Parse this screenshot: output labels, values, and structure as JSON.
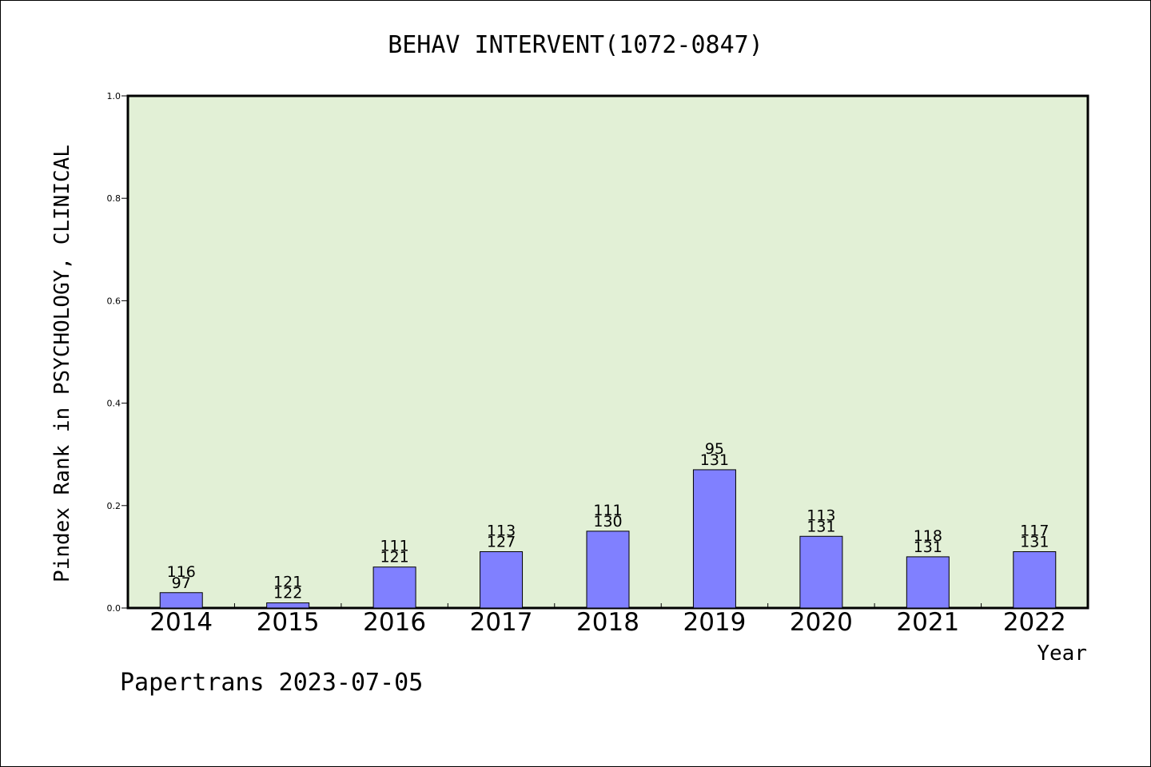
{
  "chart_data": {
    "type": "bar",
    "title": "BEHAV INTERVENT(1072-0847)",
    "xlabel": "Year",
    "ylabel": "Pindex Rank in PSYCHOLOGY, CLINICAL",
    "categories": [
      "2014",
      "2015",
      "2016",
      "2017",
      "2018",
      "2019",
      "2020",
      "2021",
      "2022"
    ],
    "values": [
      0.03,
      0.01,
      0.08,
      0.11,
      0.15,
      0.27,
      0.14,
      0.1,
      0.11
    ],
    "label_top": [
      "116",
      "121",
      "111",
      "113",
      "111",
      "95",
      "113",
      "118",
      "117"
    ],
    "label_bottom": [
      "97",
      "122",
      "121",
      "127",
      "130",
      "131",
      "131",
      "131",
      "131"
    ],
    "ylim": [
      0,
      1.0
    ],
    "yticks": [
      "0.0",
      "0.2",
      "0.4",
      "0.6",
      "0.8",
      "1.0"
    ],
    "grid": false,
    "colors": {
      "bar": "#8080ff",
      "plot_bg": "#e2f0d6",
      "axis": "#000000"
    }
  },
  "footer": "Papertrans 2023-07-05"
}
